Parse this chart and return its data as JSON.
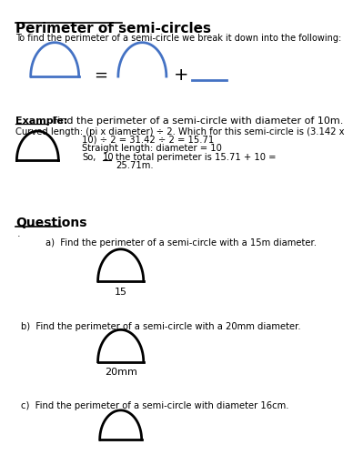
{
  "title": "Perimeter of semi-circles",
  "title_fontsize": 11,
  "intro_text": "To find the perimeter of a semi-circle we break it down into the following:",
  "background_color": "#ffffff",
  "blue_color": "#4472C4",
  "black_color": "#000000",
  "example_label": "Example:",
  "example_text": " Find the perimeter of a semi-circle with diameter of 10m.",
  "curved_text": "Curved length: (pi x diameter) ÷ 2. Which for this semi-circle is (3.142 x",
  "curved_text2": "10) ÷ 2 = 31.42 ÷ 2 = 15.71",
  "straight_text": "Straight length: diameter = 10",
  "so_text": "So,",
  "so_num": "10",
  "total_text": "the total perimeter is 15.71 + 10 =",
  "total_text2": "25.71m.",
  "questions_label": "Questions",
  "q_dot": ".",
  "qa_text": "a)  Find the perimeter of a semi-circle with a 15m diameter.",
  "qa_label": "15",
  "qb_text": "b)  Find the perimeter of a semi-circle with a 20mm diameter.",
  "qb_label": "20mm",
  "qc_text": "c)  Find the perimeter of a semi-circle with diameter 16cm.",
  "font_family": "DejaVu Sans"
}
